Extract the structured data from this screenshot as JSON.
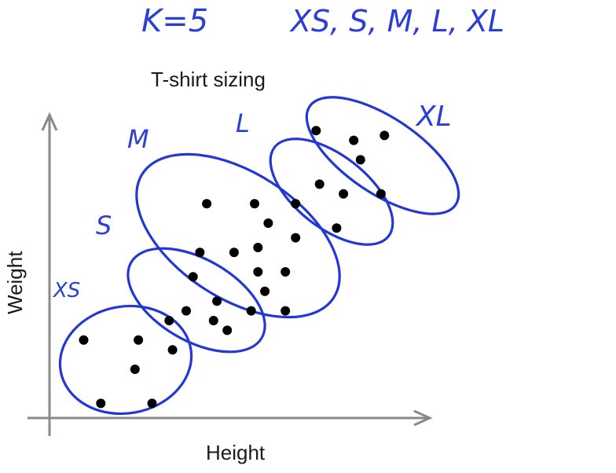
{
  "header": {
    "k_text": "K=5",
    "sizes_text": "XS, S, M, L, XL"
  },
  "chart_data": {
    "type": "scatter",
    "title": "T-shirt sizing",
    "xlabel": "Height",
    "ylabel": "Weight",
    "grid": false,
    "clusters": [
      {
        "name": "XS",
        "label": "XS",
        "points": [
          [
            1.0,
            1.6
          ],
          [
            2.6,
            1.6
          ],
          [
            2.5,
            1.0
          ],
          [
            1.5,
            0.3
          ],
          [
            3.0,
            0.3
          ],
          [
            3.6,
            1.4
          ]
        ]
      },
      {
        "name": "S",
        "label": "S",
        "points": [
          [
            4.2,
            2.9
          ],
          [
            4.0,
            2.2
          ],
          [
            4.9,
            2.4
          ],
          [
            4.8,
            2.0
          ],
          [
            5.2,
            1.8
          ],
          [
            5.9,
            2.2
          ],
          [
            3.5,
            2.0
          ]
        ]
      },
      {
        "name": "M",
        "label": "M",
        "points": [
          [
            4.6,
            4.4
          ],
          [
            6.0,
            4.4
          ],
          [
            6.4,
            4.0
          ],
          [
            4.4,
            3.4
          ],
          [
            5.4,
            3.4
          ],
          [
            6.1,
            3.5
          ],
          [
            7.2,
            3.7
          ],
          [
            6.1,
            3.0
          ],
          [
            6.9,
            3.0
          ],
          [
            6.3,
            2.6
          ],
          [
            6.9,
            2.2
          ]
        ]
      },
      {
        "name": "L",
        "label": "L",
        "points": [
          [
            7.2,
            4.4
          ],
          [
            7.9,
            4.8
          ],
          [
            8.6,
            4.6
          ],
          [
            8.4,
            3.9
          ]
        ]
      },
      {
        "name": "XL",
        "label": "XL",
        "points": [
          [
            7.8,
            5.9
          ],
          [
            8.9,
            5.7
          ],
          [
            9.8,
            5.8
          ],
          [
            9.1,
            5.3
          ],
          [
            9.7,
            4.6
          ]
        ]
      }
    ]
  },
  "colors": {
    "ink_blue": "#2437d4",
    "axis_gray": "#8a8a8a",
    "dot": "#000000"
  }
}
